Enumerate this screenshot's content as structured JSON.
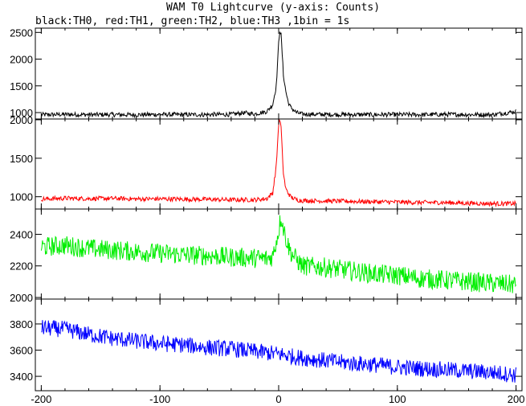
{
  "header": {
    "title": "WAM T0 Lightcurve (y-axis: Counts)",
    "subtitle": "black:TH0, red:TH1, green:TH2, blue:TH3 ,1bin = 1s"
  },
  "chart_data": {
    "type": "line",
    "title": "WAM T0 Lightcurve (y-axis: Counts)",
    "subtitle": "black:TH0, red:TH1, green:TH2, blue:TH3 ,1bin = 1s",
    "x_ticks": [
      -200,
      -100,
      0,
      100,
      200
    ],
    "x_tick_labels": [
      "-200",
      "-100",
      "0",
      "100",
      "200"
    ],
    "xlim": [
      -205,
      205
    ],
    "panels": [
      {
        "name": "TH0",
        "color": "#000000",
        "ylim": [
          880,
          2580
        ],
        "y_ticks": [
          1000,
          1500,
          2000,
          2500
        ],
        "y_tick_labels": [
          "1000",
          "1500",
          "2000",
          "2500"
        ],
        "x": [
          -200,
          -180,
          -160,
          -140,
          -120,
          -100,
          -80,
          -60,
          -40,
          -30,
          -20,
          -10,
          -5,
          -2,
          0,
          1,
          2,
          3,
          4,
          6,
          8,
          10,
          15,
          20,
          40,
          60,
          80,
          100,
          120,
          140,
          160,
          180,
          200
        ],
        "values": [
          960,
          965,
          960,
          962,
          958,
          965,
          960,
          962,
          965,
          995,
          975,
          1020,
          1150,
          1500,
          2300,
          2550,
          2450,
          2100,
          1700,
          1400,
          1200,
          1100,
          1000,
          970,
          965,
          962,
          960,
          963,
          960,
          965,
          962,
          960,
          1020
        ]
      },
      {
        "name": "TH1",
        "color": "#ff0000",
        "ylim": [
          840,
          2010
        ],
        "y_ticks": [
          1000,
          1500,
          2000
        ],
        "y_tick_labels": [
          "1000",
          "1500",
          "2000"
        ],
        "x": [
          -200,
          -180,
          -160,
          -140,
          -120,
          -100,
          -80,
          -60,
          -40,
          -20,
          -10,
          -5,
          -2,
          0,
          1,
          2,
          3,
          4,
          6,
          8,
          10,
          15,
          20,
          40,
          60,
          80,
          100,
          120,
          140,
          160,
          180,
          200
        ],
        "values": [
          970,
          980,
          975,
          978,
          970,
          972,
          968,
          965,
          960,
          960,
          975,
          1050,
          1400,
          1950,
          2000,
          1900,
          1600,
          1300,
          1100,
          1050,
          1000,
          960,
          950,
          945,
          940,
          935,
          930,
          925,
          925,
          915,
          910,
          910
        ]
      },
      {
        "name": "TH2",
        "color": "#00ee00",
        "ylim": [
          1990,
          2560
        ],
        "y_ticks": [
          2000,
          2200,
          2400
        ],
        "y_tick_labels": [
          "2000",
          "2200",
          "2400"
        ],
        "x": [
          -200,
          -180,
          -160,
          -140,
          -120,
          -100,
          -80,
          -60,
          -40,
          -20,
          -10,
          -5,
          0,
          2,
          4,
          6,
          8,
          10,
          15,
          20,
          40,
          60,
          80,
          100,
          120,
          140,
          160,
          180,
          200
        ],
        "values": [
          2320,
          2330,
          2310,
          2300,
          2290,
          2280,
          2270,
          2265,
          2255,
          2250,
          2245,
          2260,
          2420,
          2520,
          2440,
          2380,
          2330,
          2290,
          2240,
          2200,
          2190,
          2170,
          2150,
          2140,
          2120,
          2110,
          2100,
          2090,
          2080
        ]
      },
      {
        "name": "TH3",
        "color": "#0000ff",
        "ylim": [
          3290,
          3990
        ],
        "y_ticks": [
          3400,
          3600,
          3800
        ],
        "y_tick_labels": [
          "3400",
          "3600",
          "3800"
        ],
        "x": [
          -200,
          -180,
          -160,
          -140,
          -120,
          -100,
          -80,
          -60,
          -40,
          -20,
          0,
          20,
          40,
          60,
          80,
          100,
          120,
          140,
          160,
          180,
          200
        ],
        "values": [
          3770,
          3760,
          3720,
          3690,
          3670,
          3650,
          3640,
          3620,
          3610,
          3590,
          3570,
          3540,
          3520,
          3500,
          3490,
          3470,
          3460,
          3450,
          3440,
          3430,
          3410
        ]
      }
    ],
    "grid": false
  }
}
